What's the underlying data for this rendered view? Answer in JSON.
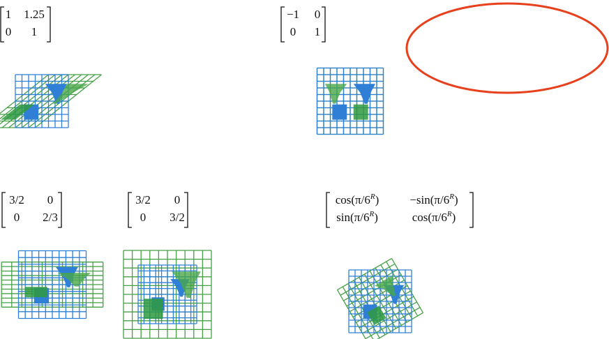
{
  "panels": [
    {
      "matrix": [
        [
          "1",
          "1.25"
        ],
        [
          "0",
          "1"
        ]
      ]
    },
    {
      "matrix": [
        [
          "−1",
          "0"
        ],
        [
          "0",
          "1"
        ]
      ]
    },
    {
      "matrix": [
        [
          "3/2",
          "0"
        ],
        [
          "0",
          "2/3"
        ]
      ]
    },
    {
      "matrix": [
        [
          "3/2",
          "0"
        ],
        [
          "0",
          "3/2"
        ]
      ]
    },
    {
      "matrix": [
        [
          [
            "cos(π/6",
            "R",
            ")"
          ],
          [
            "−sin(π/6",
            "R",
            ")"
          ]
        ],
        [
          [
            "sin(π/6",
            "R",
            ")"
          ],
          [
            "cos(π/6",
            "R",
            ")"
          ]
        ]
      ]
    }
  ]
}
